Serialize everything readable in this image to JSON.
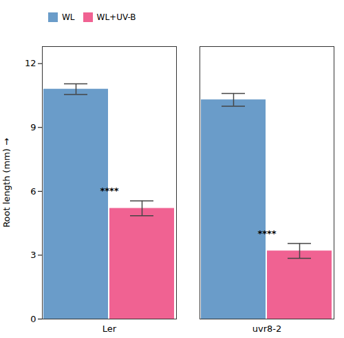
{
  "chart_data": {
    "type": "bar",
    "categories": [
      "Ler",
      "uvr8-2"
    ],
    "series": [
      {
        "name": "WL",
        "color": "#6A9CC9",
        "values": [
          10.8,
          10.3
        ],
        "errors": [
          0.25,
          0.3
        ]
      },
      {
        "name": "WL+UV-B",
        "color": "#F06292",
        "values": [
          5.2,
          3.2
        ],
        "errors": [
          0.35,
          0.35
        ]
      }
    ],
    "ylabel": "Root length (mm)",
    "ylim": [
      0,
      12.8
    ],
    "yticks": [
      0,
      3,
      6,
      9,
      12
    ],
    "grid": false,
    "legend": "upper left",
    "annotations": [
      {
        "text": "****",
        "category": "Ler",
        "series": "WL+UV-B"
      },
      {
        "text": "****",
        "category": "uvr8-2",
        "series": "WL+UV-B"
      }
    ]
  }
}
